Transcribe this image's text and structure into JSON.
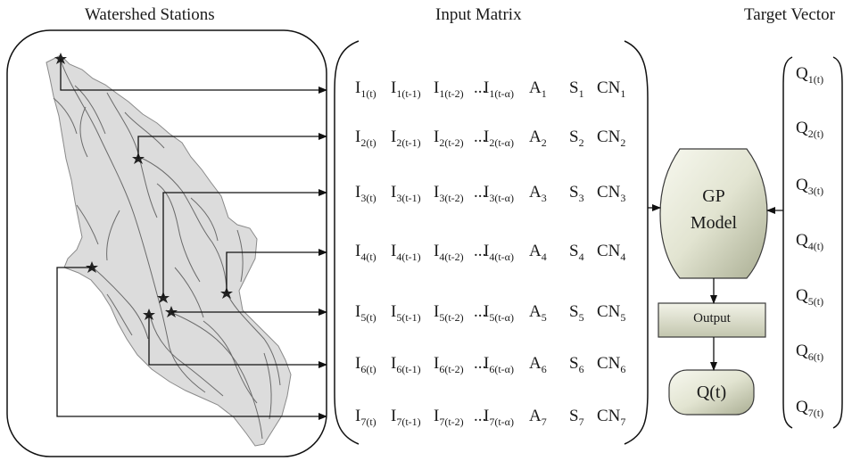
{
  "headers": {
    "watershed": "Watershed Stations",
    "input_matrix": "Input Matrix",
    "target_vector": "Target Vector"
  },
  "matrix_rows": [
    {
      "c1": "I",
      "s1": "1(t)",
      "c2": "I",
      "s2": "1(t-1)",
      "c3": "I",
      "s3": "1(t-2)",
      "dots": "...",
      "c4": "I",
      "s4": "1(t-α)",
      "c5": "A",
      "s5": "1",
      "c6": "S",
      "s6": "1",
      "c7": "CN",
      "s7": "1"
    },
    {
      "c1": "I",
      "s1": "2(t)",
      "c2": "I",
      "s2": "2(t-1)",
      "c3": "I",
      "s3": "2(t-2)",
      "dots": "...",
      "c4": "I",
      "s4": "2(t-α)",
      "c5": "A",
      "s5": "2",
      "c6": "S",
      "s6": "2",
      "c7": "CN",
      "s7": "2"
    },
    {
      "c1": "I",
      "s1": "3(t)",
      "c2": "I",
      "s2": "3(t-1)",
      "c3": "I",
      "s3": "3(t-2)",
      "dots": "...",
      "c4": "I",
      "s4": "3(t-α)",
      "c5": "A",
      "s5": "3",
      "c6": "S",
      "s6": "3",
      "c7": "CN",
      "s7": "3"
    },
    {
      "c1": "I",
      "s1": "4(t)",
      "c2": "I",
      "s2": "4(t-1)",
      "c3": "I",
      "s3": "4(t-2)",
      "dots": "...",
      "c4": "I",
      "s4": "4(t-α)",
      "c5": "A",
      "s5": "4",
      "c6": "S",
      "s6": "4",
      "c7": "CN",
      "s7": "4"
    },
    {
      "c1": "I",
      "s1": "5(t)",
      "c2": "I",
      "s2": "5(t-1)",
      "c3": "I",
      "s3": "5(t-2)",
      "dots": "...",
      "c4": "I",
      "s4": "5(t-α)",
      "c5": "A",
      "s5": "5",
      "c6": "S",
      "s6": "5",
      "c7": "CN",
      "s7": "5"
    },
    {
      "c1": "I",
      "s1": "6(t)",
      "c2": "I",
      "s2": "6(t-1)",
      "c3": "I",
      "s3": "6(t-2)",
      "dots": "...",
      "c4": "I",
      "s4": "6(t-α)",
      "c5": "A",
      "s5": "6",
      "c6": "S",
      "s6": "6",
      "c7": "CN",
      "s7": "6"
    },
    {
      "c1": "I",
      "s1": "7(t)",
      "c2": "I",
      "s2": "7(t-1)",
      "c3": "I",
      "s3": "7(t-2)",
      "dots": "...",
      "c4": "I",
      "s4": "7(t-α)",
      "c5": "A",
      "s5": "7",
      "c6": "S",
      "s6": "7",
      "c7": "CN",
      "s7": "7"
    }
  ],
  "target_vector": [
    {
      "q": "Q",
      "sub": "1(t)"
    },
    {
      "q": "Q",
      "sub": "2(t)"
    },
    {
      "q": "Q",
      "sub": "3(t)"
    },
    {
      "q": "Q",
      "sub": "4(t)"
    },
    {
      "q": "Q",
      "sub": "5(t)"
    },
    {
      "q": "Q",
      "sub": "6(t)"
    },
    {
      "q": "Q",
      "sub": "7(t)"
    }
  ],
  "gp_model": {
    "line1": "GP",
    "line2": "Model"
  },
  "output_box": {
    "label": "Output"
  },
  "result_box": {
    "label": "Q(t)"
  },
  "colors": {
    "watershed_fill": "#dcdcdc",
    "box_gradient_light": "#f4f5ea",
    "box_gradient_dark": "#b9bca4",
    "line": "#111111"
  },
  "icons": {
    "station_marker": "star-icon"
  }
}
